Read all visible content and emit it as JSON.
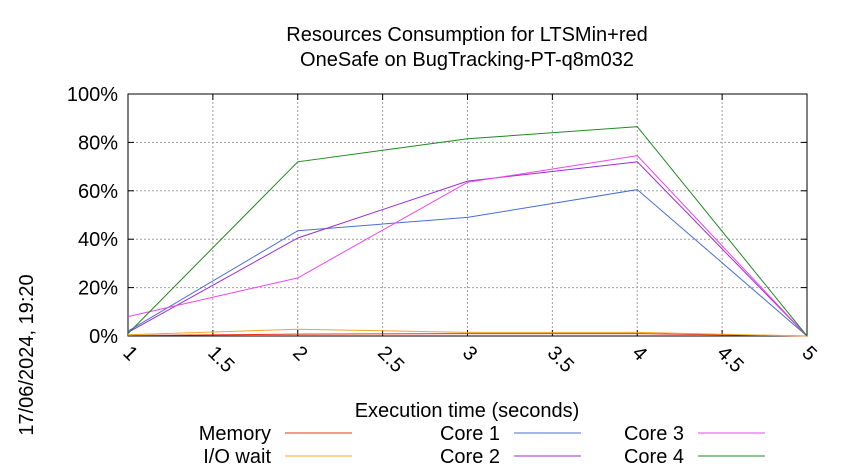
{
  "chart_data": {
    "type": "line",
    "title_line1": "Resources Consumption for LTSMin+red",
    "title_line2": "OneSafe on BugTracking-PT-q8m032",
    "xlabel": "Execution time (seconds)",
    "ylabel": "",
    "timestamp": "17/06/2024, 19:20",
    "xlim": [
      1,
      5
    ],
    "ylim": [
      0,
      100
    ],
    "x_ticks": [
      "1",
      "1.5",
      "2",
      "2.5",
      "3",
      "3.5",
      "4",
      "4.5",
      "5"
    ],
    "x_tick_values": [
      1,
      1.5,
      2,
      2.5,
      3,
      3.5,
      4,
      4.5,
      5
    ],
    "y_ticks": [
      "0%",
      "20%",
      "40%",
      "60%",
      "80%",
      "100%"
    ],
    "y_tick_values": [
      0,
      20,
      40,
      60,
      80,
      100
    ],
    "grid": true,
    "x": [
      1,
      2,
      3,
      4,
      5
    ],
    "series": [
      {
        "name": "Memory",
        "color": "#e8321e",
        "values": [
          0.2,
          0.8,
          1.0,
          1.0,
          0
        ]
      },
      {
        "name": "I/O wait",
        "color": "#f5a623",
        "values": [
          0.5,
          2.8,
          1.5,
          1.5,
          0
        ]
      },
      {
        "name": "Core 1",
        "color": "#4a6fd1",
        "values": [
          2.0,
          43.5,
          49.0,
          60.5,
          0
        ]
      },
      {
        "name": "Core 2",
        "color": "#9d2bd6",
        "values": [
          1.5,
          40.5,
          64.0,
          72.0,
          0
        ]
      },
      {
        "name": "Core 3",
        "color": "#ee44ee",
        "values": [
          8.0,
          24.0,
          63.5,
          74.5,
          0
        ]
      },
      {
        "name": "Core 4",
        "color": "#1e8a1e",
        "values": [
          1.0,
          72.0,
          81.5,
          86.5,
          0
        ]
      }
    ]
  }
}
